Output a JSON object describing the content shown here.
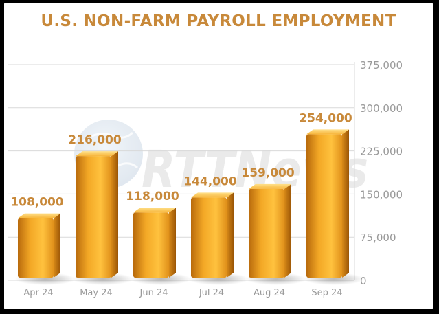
{
  "title": "U.S. NON-FARM PAYROLL EMPLOYMENT",
  "watermark": "RTTNews",
  "colors": {
    "title": "#c8893a",
    "bar_light": "#ffcf5a",
    "bar_mid": "#f0a020",
    "bar_dark": "#b8680a",
    "label": "#c8893a",
    "axis_text": "#999999",
    "grid": "#d9d9d9"
  },
  "chart_data": {
    "type": "bar",
    "title": "U.S. NON-FARM PAYROLL EMPLOYMENT",
    "categories": [
      "Apr 24",
      "May 24",
      "Jun 24",
      "Jul 24",
      "Aug 24",
      "Sep 24"
    ],
    "values": [
      108000,
      216000,
      118000,
      144000,
      159000,
      254000
    ],
    "data_labels": [
      "108,000",
      "216,000",
      "118,000",
      "144,000",
      "159,000",
      "254,000"
    ],
    "y_ticks": [
      0,
      75000,
      150000,
      225000,
      300000,
      375000
    ],
    "y_tick_labels": [
      "0",
      "75,000",
      "150,000",
      "225,000",
      "300,000",
      "375,000"
    ],
    "ylim": [
      0,
      375000
    ],
    "xlabel": "",
    "ylabel": "",
    "grid": true,
    "y_axis_position": "right",
    "legend": "none"
  }
}
